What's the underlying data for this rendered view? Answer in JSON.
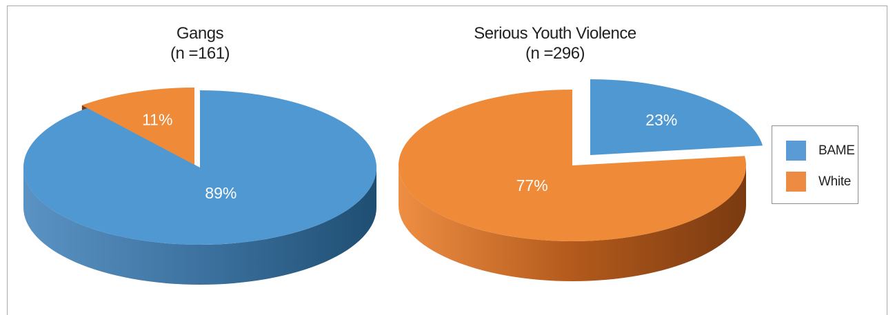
{
  "colors": {
    "bame_top": "#63a8da",
    "bame_side_light": "#4a86b8",
    "bame_side_dark": "#1f4e72",
    "white_top": "#f28e3c",
    "white_side_light": "#e07a2a",
    "white_side_dark": "#7a3a10",
    "label": "#ffffff"
  },
  "chart_data": [
    {
      "type": "pie",
      "title": "Gangs",
      "subtitle": "(n =161)",
      "slices": [
        {
          "name": "BAME",
          "value": 89,
          "label": "89%",
          "exploded": false
        },
        {
          "name": "White",
          "value": 11,
          "label": "11%",
          "exploded": true
        }
      ]
    },
    {
      "type": "pie",
      "title": "Serious Youth Violence",
      "subtitle": "(n =296)",
      "slices": [
        {
          "name": "BAME",
          "value": 23,
          "label": "23%",
          "exploded": true
        },
        {
          "name": "White",
          "value": 77,
          "label": "77%",
          "exploded": false
        }
      ]
    }
  ],
  "legend": {
    "placement": "right",
    "items": [
      {
        "name": "BAME",
        "color": "#5b9bd5"
      },
      {
        "name": "White",
        "color": "#ed8b42"
      }
    ]
  }
}
